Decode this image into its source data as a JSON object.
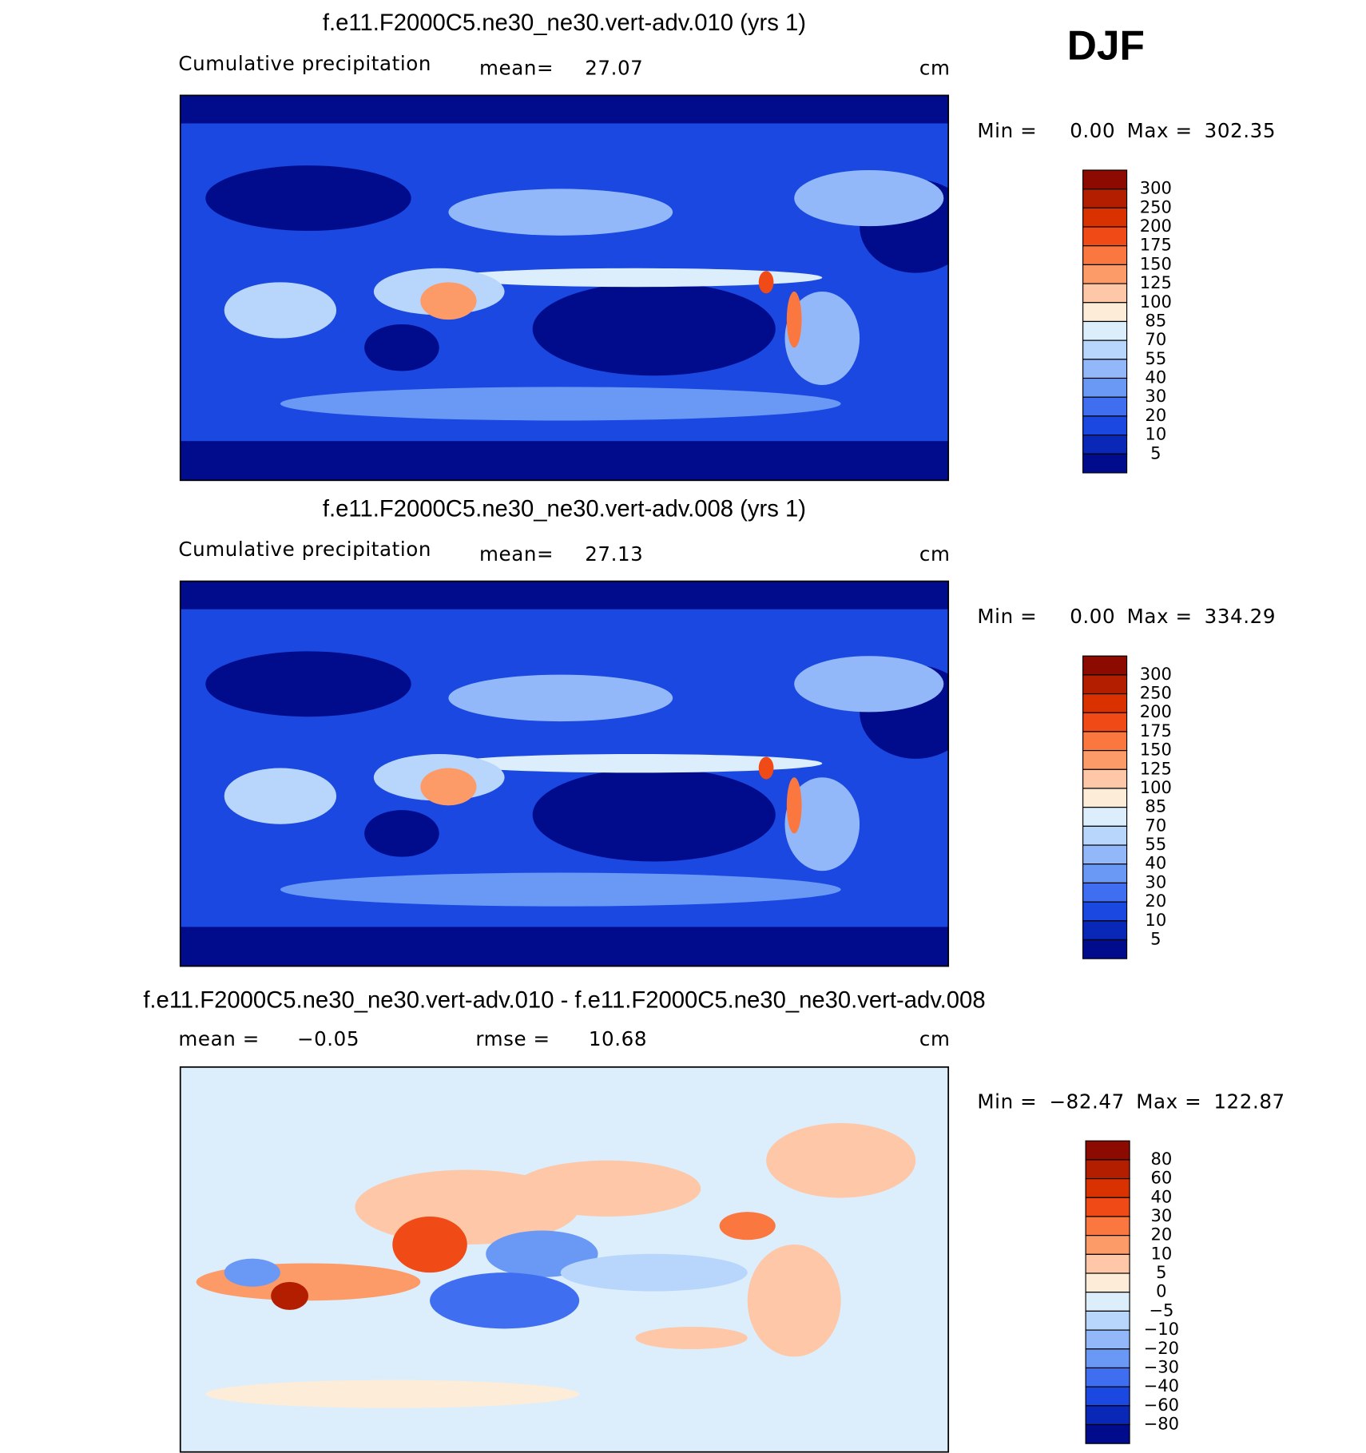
{
  "header": {
    "season": "DJF"
  },
  "panels": [
    {
      "title": "f.e11.F2000C5.ne30_ne30.vert-adv.010 (yrs 1)",
      "subtitle": "Cumulative precipitation",
      "stats": [
        {
          "label": "mean=",
          "value": "27.07"
        }
      ],
      "units": "cm",
      "min_label": "Min =",
      "min": "0.00",
      "max_label": "Max =",
      "max": "302.35",
      "colorbar": {
        "labels": [
          "300",
          "250",
          "200",
          "175",
          "150",
          "125",
          "100",
          "85",
          "70",
          "55",
          "40",
          "30",
          "20",
          "10",
          "5"
        ],
        "colors": [
          "#8c0a00",
          "#b41e00",
          "#d93200",
          "#f04a16",
          "#fa7840",
          "#fc9a68",
          "#fdc7a8",
          "#fdecd8",
          "#dceefc",
          "#b8d6fb",
          "#92b8fa",
          "#6a98f5",
          "#3f6ef0",
          "#1a48e0",
          "#0a28b8",
          "#000c8c"
        ]
      }
    },
    {
      "title": "f.e11.F2000C5.ne30_ne30.vert-adv.008 (yrs 1)",
      "subtitle": "Cumulative precipitation",
      "stats": [
        {
          "label": "mean=",
          "value": "27.13"
        }
      ],
      "units": "cm",
      "min_label": "Min =",
      "min": "0.00",
      "max_label": "Max =",
      "max": "334.29",
      "colorbar": {
        "labels": [
          "300",
          "250",
          "200",
          "175",
          "150",
          "125",
          "100",
          "85",
          "70",
          "55",
          "40",
          "30",
          "20",
          "10",
          "5"
        ],
        "colors": [
          "#8c0a00",
          "#b41e00",
          "#d93200",
          "#f04a16",
          "#fa7840",
          "#fc9a68",
          "#fdc7a8",
          "#fdecd8",
          "#dceefc",
          "#b8d6fb",
          "#92b8fa",
          "#6a98f5",
          "#3f6ef0",
          "#1a48e0",
          "#0a28b8",
          "#000c8c"
        ]
      }
    },
    {
      "title": "f.e11.F2000C5.ne30_ne30.vert-adv.010 - f.e11.F2000C5.ne30_ne30.vert-adv.008",
      "stats": [
        {
          "label": "mean =",
          "value": "−0.05"
        },
        {
          "label": "rmse =",
          "value": "10.68"
        }
      ],
      "units": "cm",
      "min_label": "Min =",
      "min": "−82.47",
      "max_label": "Max =",
      "max": "122.87",
      "colorbar": {
        "labels": [
          "80",
          "60",
          "40",
          "30",
          "20",
          "10",
          "5",
          "0",
          "−5",
          "−10",
          "−20",
          "−30",
          "−40",
          "−60",
          "−80"
        ],
        "colors": [
          "#8c0a00",
          "#b41e00",
          "#d93200",
          "#f04a16",
          "#fa7840",
          "#fc9a68",
          "#fdc7a8",
          "#fdecd8",
          "#dceefc",
          "#b8d6fb",
          "#92b8fa",
          "#6a98f5",
          "#3f6ef0",
          "#1a48e0",
          "#0a28b8",
          "#000c8c"
        ]
      }
    }
  ]
}
